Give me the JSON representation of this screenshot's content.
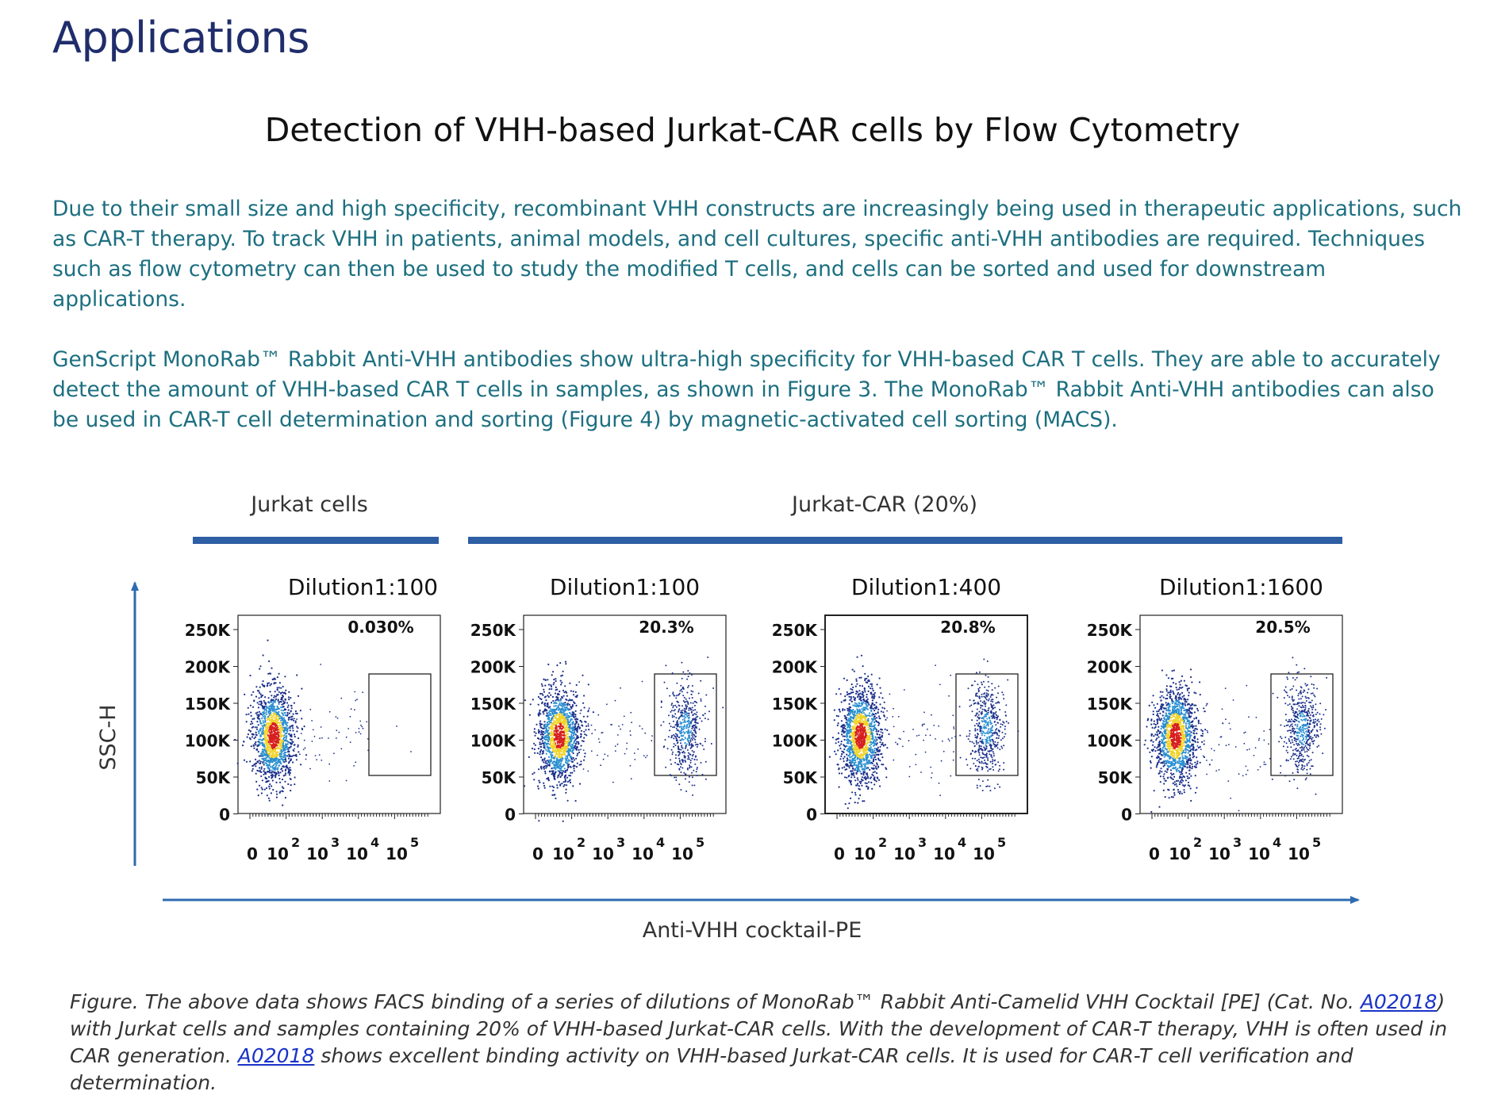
{
  "page": {
    "title": "Applications",
    "heading": "Detection of VHH-based Jurkat-CAR cells by Flow Cytometry",
    "paragraph1": "Due to their small size and high specificity, recombinant VHH constructs are increasingly being used in therapeutic applications, such as CAR-T therapy. To track VHH in patients, animal models, and cell cultures, specific anti-VHH antibodies are required. Techniques such as flow cytometry can then be used to study the modified T cells, and cells can be sorted and used for downstream applications.",
    "paragraph2": "GenScript MonoRab™ Rabbit Anti-VHH antibodies show ultra-high specificity for VHH-based CAR T cells. They are able to accurately detect the amount of VHH-based CAR T cells in samples, as shown in Figure 3. The MonoRab™ Rabbit Anti-VHH antibodies can also be used in CAR-T cell determination and sorting (Figure 4) by magnetic-activated cell sorting (MACS)."
  },
  "caption": {
    "part1": "Figure. The above data shows FACS binding of a series of dilutions of MonoRab™ Rabbit Anti-Camelid VHH Cocktail [PE] (Cat. No. ",
    "link1": "A02018",
    "part2": ") with Jurkat cells and samples containing 20% of VHH-based Jurkat-CAR cells. With the development of CAR-T therapy, VHH is often used in CAR generation. ",
    "link2": "A02018",
    "part3": " shows excellent binding activity on VHH-based Jurkat-CAR cells. It is used for CAR-T cell verification and determination."
  },
  "figure": {
    "group_labels": [
      "Jurkat cells",
      "Jurkat-CAR (20%)"
    ],
    "y_axis_label": "SSC-H",
    "x_axis_label": "Anti-VHH cocktail-PE",
    "y_ticks": [
      "250K",
      "200K",
      "150K",
      "100K",
      "50K",
      "0"
    ],
    "x_ticks": [
      "0",
      "10",
      "10",
      "10",
      "10"
    ],
    "x_tick_exponents": [
      "2",
      "3",
      "4",
      "5"
    ],
    "colors": {
      "bar": "#2e5ea3",
      "arrow": "#2f6bb0",
      "density_high": "#d61f1f",
      "density_mid": "#f2d32b",
      "density_low": "#2a8fd0",
      "density_sparse": "#1b2f8a"
    }
  },
  "chart_data": {
    "type": "scatter",
    "xlabel": "Anti-VHH cocktail-PE",
    "ylabel": "SSC-H",
    "x_scale": "biexponential (log)",
    "ylim": [
      0,
      262144
    ],
    "panels": [
      {
        "group": "Jurkat cells",
        "title": "Dilution1:100",
        "gate_percent": "0.030%",
        "gate_fraction": 0.0003,
        "negative_population": {
          "center_y": 105000
        },
        "positive_population": null
      },
      {
        "group": "Jurkat-CAR (20%)",
        "title": "Dilution1:100",
        "gate_percent": "20.3%",
        "gate_fraction": 0.203,
        "negative_population": {
          "center_y": 105000
        },
        "positive_population": {
          "center_y": 115000
        }
      },
      {
        "group": "Jurkat-CAR (20%)",
        "title": "Dilution1:400",
        "gate_percent": "20.8%",
        "gate_fraction": 0.208,
        "negative_population": {
          "center_y": 105000
        },
        "positive_population": {
          "center_y": 115000
        }
      },
      {
        "group": "Jurkat-CAR (20%)",
        "title": "Dilution1:1600",
        "gate_percent": "20.5%",
        "gate_fraction": 0.205,
        "negative_population": {
          "center_y": 105000
        },
        "positive_population": {
          "center_y": 115000
        }
      }
    ]
  }
}
